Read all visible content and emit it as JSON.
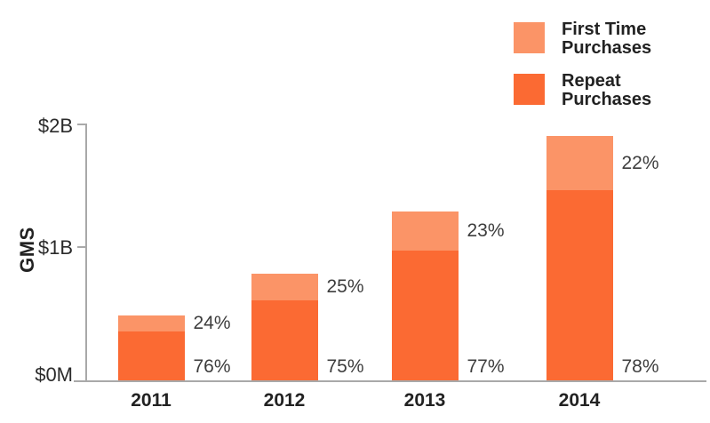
{
  "chart_data": {
    "type": "bar",
    "stacked": true,
    "title": "",
    "ylabel": "GMS",
    "xlabel": "",
    "categories": [
      "2011",
      "2012",
      "2013",
      "2014"
    ],
    "totals_b": [
      0.51,
      0.83,
      1.32,
      1.91
    ],
    "series": [
      {
        "name": "First Time Purchases",
        "color": "#FB9467",
        "pct": [
          24,
          25,
          23,
          22
        ],
        "pct_labels": [
          "24%",
          "25%",
          "23%",
          "22%"
        ],
        "values_b": [
          0.12,
          0.21,
          0.3,
          0.42
        ]
      },
      {
        "name": "Repeat Purchases",
        "color": "#FB6A33",
        "pct": [
          76,
          75,
          77,
          78
        ],
        "pct_labels": [
          "76%",
          "75%",
          "77%",
          "78%"
        ],
        "values_b": [
          0.39,
          0.62,
          1.02,
          1.49
        ]
      }
    ],
    "yticks": [
      {
        "label": "$2B",
        "value_b": 2
      },
      {
        "label": "$1B",
        "value_b": 1
      },
      {
        "label": "$0M",
        "value_b": 0
      }
    ],
    "ylim_b": [
      0,
      2
    ],
    "grid": false,
    "legend_position": "top-right"
  },
  "legend": {
    "items": [
      {
        "line1": "First Time",
        "line2": "Purchases",
        "color": "#FB9467"
      },
      {
        "line1": "Repeat",
        "line2": "Purchases",
        "color": "#FB6A33"
      }
    ]
  },
  "colors": {
    "first_time": "#FB9467",
    "repeat": "#FB6A33",
    "axis": "#A9A9A9",
    "text": "#222222",
    "pct_text": "#3D3D3D"
  }
}
